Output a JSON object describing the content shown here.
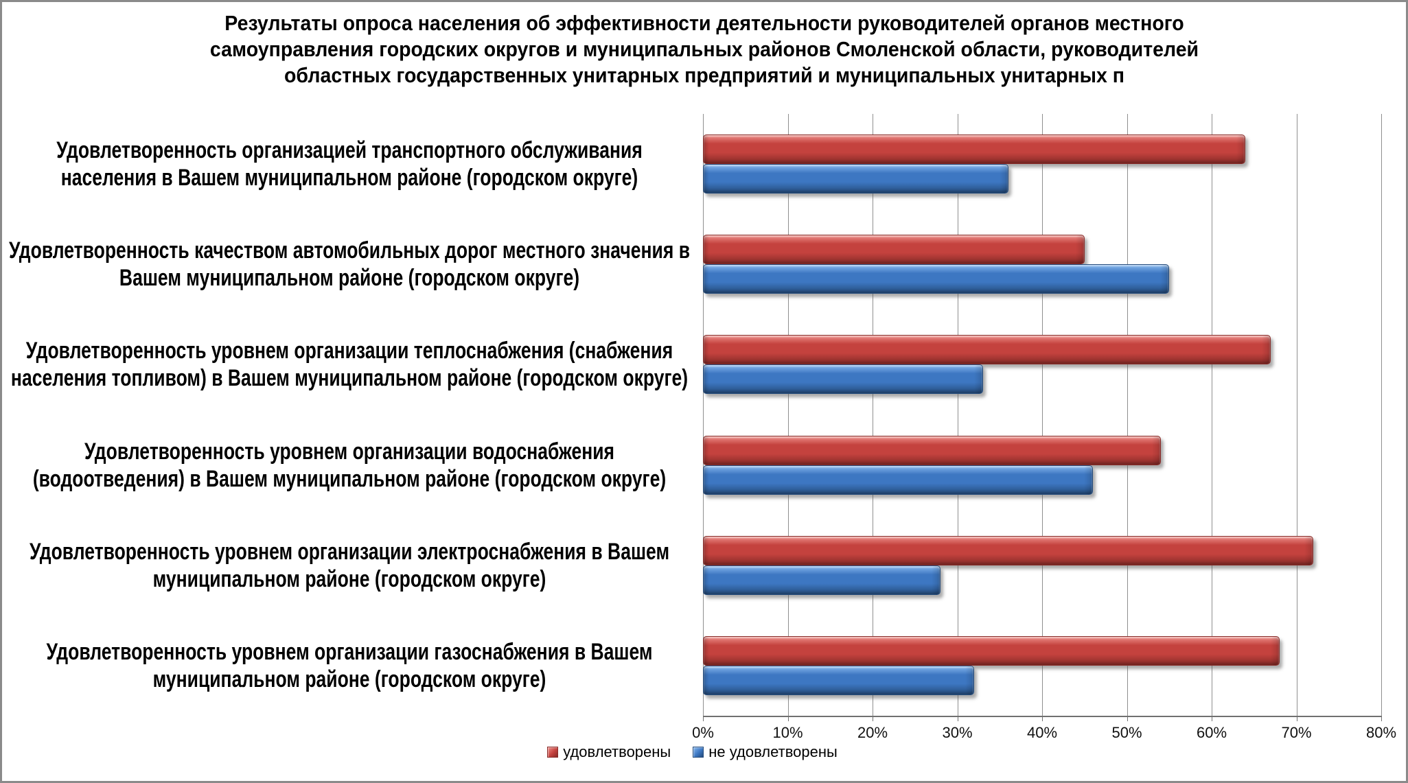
{
  "chart_data": {
    "type": "bar",
    "orientation": "horizontal",
    "title": "Результаты опроса населения об эффективности деятельности руководителей органов местного самоуправления городских округов и муниципальных районов Смоленской области, руководителей областных государственных унитарных предприятий и муниципальных унитарных п",
    "categories": [
      "Удовлетворенность организацией транспортного обслуживания населения в Вашем муниципальном районе (городском округе)",
      "Удовлетворенность качеством автомобильных дорог местного значения в Вашем муниципальном районе (городском округе)",
      "Удовлетворенность уровнем организации теплоснабжения (снабжения населения топливом) в Вашем муниципальном районе (городском округе)",
      "Удовлетворенность уровнем организации водоснабжения (водоотведения) в Вашем муниципальном районе (городском округе)",
      "Удовлетворенность уровнем организации электроснабжения в Вашем муниципальном районе (городском округе)",
      "Удовлетворенность уровнем организации газоснабжения в Вашем муниципальном районе (городском округе)"
    ],
    "series": [
      {
        "name": "удовлетворены",
        "color": "#C4423E",
        "color_light": "#ED8E89",
        "color_dark": "#872B28",
        "values": [
          64,
          45,
          67,
          54,
          72,
          68
        ]
      },
      {
        "name": "не удовлетворены",
        "color": "#3D77C2",
        "color_light": "#86B7EE",
        "color_dark": "#254C7C",
        "values": [
          36,
          55,
          33,
          46,
          28,
          32
        ]
      }
    ],
    "x_ticks": [
      "0%",
      "10%",
      "20%",
      "30%",
      "40%",
      "50%",
      "60%",
      "70%",
      "80%"
    ],
    "xlim": [
      0,
      80
    ],
    "xlabel": "",
    "ylabel": "",
    "grid": "vertical-major",
    "legend_position": "bottom"
  }
}
